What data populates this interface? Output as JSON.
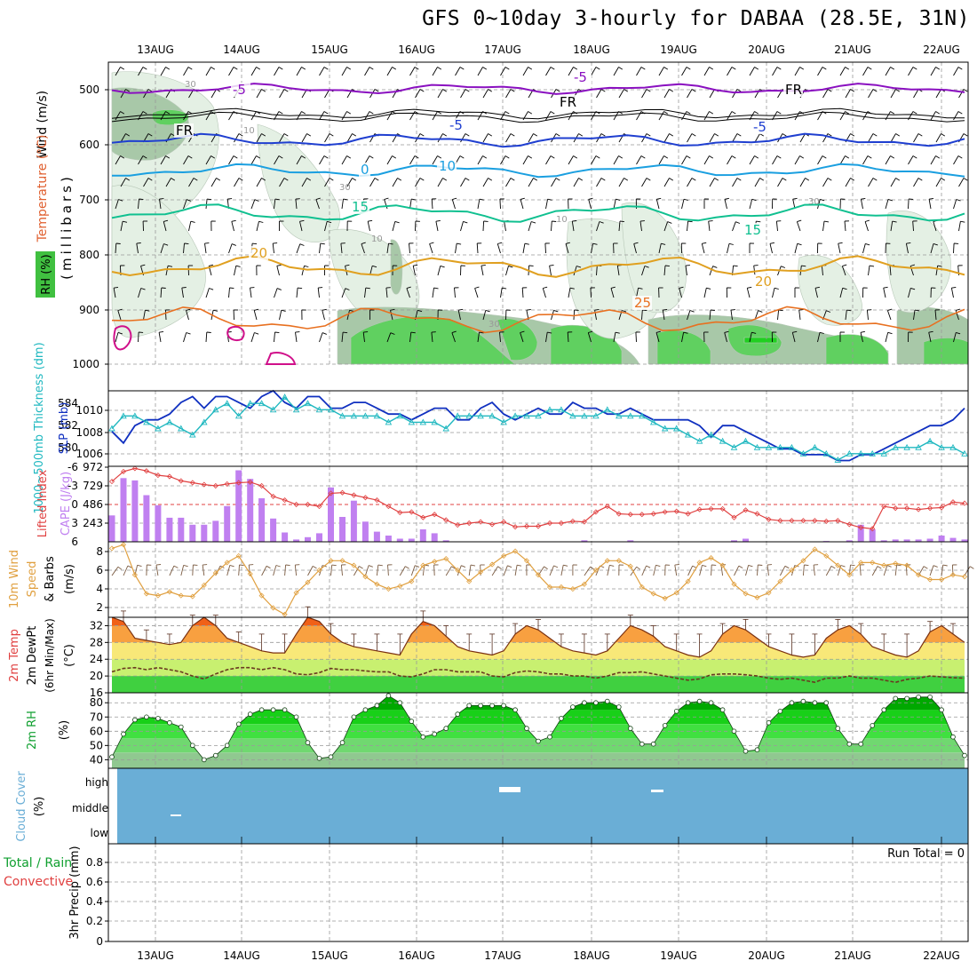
{
  "title": "GFS 0~10day 3-hourly for DABAA (28.5E, 31N)",
  "dates": [
    "13AUG",
    "14AUG",
    "15AUG",
    "16AUG",
    "17AUG",
    "18AUG",
    "19AUG",
    "20AUG",
    "21AUG",
    "22AUG"
  ],
  "colors": {
    "temp_purple": "#8a10c0",
    "temp_black": "#000000",
    "temp_blue": "#1f3fd0",
    "temp_cyan": "#1a9fe0",
    "temp_teal": "#10c090",
    "temp_orange": "#e0a020",
    "temp_darkorange": "#e87020",
    "temp_magenta": "#d0108a",
    "rh_light": "#e4f0e4",
    "rh_mid": "#a8c8a8",
    "rh_green": "#60d060",
    "slp": "#1030c0",
    "thickness": "#20b8c0",
    "cape": "#c080f0",
    "lifted": "#e04040",
    "wind10": "#e0a040",
    "cloud": "#6aaed6"
  },
  "panels": {
    "upper": {
      "ylabel_wind": "Wind (m/s)",
      "ylabel_temp": "Temperature (°C)",
      "ylabel_rh": "RH (%)",
      "ylabel_mb": "(millibars)",
      "yticks": [
        "500",
        "600",
        "700",
        "800",
        "900",
        "1000"
      ],
      "contour_labels": [
        {
          "text": "-5",
          "color": "temp_purple"
        },
        {
          "text": "-5",
          "color": "temp_purple"
        },
        {
          "text": "FR",
          "color": "temp_black"
        },
        {
          "text": "FR",
          "color": "temp_black"
        },
        {
          "text": "FR",
          "color": "temp_black"
        },
        {
          "text": "-5",
          "color": "temp_blue"
        },
        {
          "text": "-5",
          "color": "temp_blue"
        },
        {
          "text": "0",
          "color": "temp_cyan"
        },
        {
          "text": "10",
          "color": "temp_cyan"
        },
        {
          "text": "15",
          "color": "temp_teal"
        },
        {
          "text": "15",
          "color": "temp_teal"
        },
        {
          "text": "20",
          "color": "temp_orange"
        },
        {
          "text": "20",
          "color": "temp_orange"
        },
        {
          "text": "25",
          "color": "temp_darkorange"
        },
        {
          "text": "30",
          "color": "rh_mid"
        },
        {
          "text": "10",
          "color": "rh_mid"
        },
        {
          "text": "30",
          "color": "rh_mid"
        },
        {
          "text": "10",
          "color": "rh_mid"
        },
        {
          "text": "30",
          "color": "rh_mid"
        },
        {
          "text": "10",
          "color": "rh_mid"
        },
        {
          "text": "30",
          "color": "rh_mid"
        }
      ]
    },
    "slp": {
      "ylabel_thickness": "1000~500mb Thickness (dm)",
      "ylabel_slp": "SLP (mb)",
      "left_ticks": [
        "584",
        "582",
        "580"
      ],
      "right_ticks": [
        "1010",
        "1008",
        "1006"
      ]
    },
    "cape": {
      "ylabel_li": "Lifted Index",
      "ylabel_cape": "CAPE (J/kg)",
      "left_ticks": [
        "-6",
        "-3",
        "0",
        "3",
        "6"
      ],
      "right_ticks": [
        "972",
        "729",
        "486",
        "243"
      ]
    },
    "wind10": {
      "ylabel": "10m Wind Speed & Barbs (m/s)",
      "ylabel_a": "10m Wind",
      "ylabel_b": "Speed",
      "ylabel_c": "& Barbs",
      "ylabel_unit": "(m/s)",
      "yticks": [
        "8",
        "6",
        "4",
        "2"
      ]
    },
    "temp2m": {
      "ylabel_a": "2m Temp",
      "ylabel_b": "2m DewPt",
      "ylabel_c": "(6hr Min/Max)",
      "ylabel_unit": "(°C)",
      "yticks": [
        "32",
        "28",
        "24",
        "20",
        "16"
      ]
    },
    "rh2m": {
      "ylabel": "2m RH",
      "ylabel_unit": "(%)",
      "yticks": [
        "80",
        "70",
        "60",
        "50",
        "40"
      ]
    },
    "cloud": {
      "ylabel": "Cloud Cover",
      "ylabel_unit": "(%)",
      "levels": [
        "high",
        "middle",
        "low"
      ]
    },
    "precip": {
      "ylabel_a": "Total / Rain",
      "ylabel_b": "Convective",
      "ylabel_c": "3hr Precip (mm)",
      "yticks": [
        "0.8",
        "0.6",
        "0.4",
        "0.2",
        "0"
      ],
      "run_total": "Run Total = 0"
    }
  },
  "chart_data": [
    {
      "type": "line",
      "title": "SLP (mb) / 1000~500mb Thickness (dm)",
      "series": [
        {
          "name": "SLP (mb)",
          "ylim": [
            1005,
            1011.5
          ],
          "values": [
            1008.0,
            1007.0,
            1008.5,
            1009.0,
            1009.0,
            1009.5,
            1010.5,
            1011.0,
            1010.0,
            1011.0,
            1011.0,
            1010.5,
            1010.0,
            1011.0,
            1011.5,
            1010.5,
            1010.0,
            1011.0,
            1011.0,
            1010.0,
            1010.0,
            1010.5,
            1010.5,
            1010.0,
            1009.5,
            1009.5,
            1009.0,
            1009.5,
            1010.0,
            1010.0,
            1009.0,
            1009.0,
            1010.0,
            1010.5,
            1009.5,
            1009.0,
            1009.5,
            1010.0,
            1009.5,
            1009.5,
            1010.5,
            1010.0,
            1010.0,
            1009.5,
            1009.5,
            1010.0,
            1009.5,
            1009.0,
            1009.0,
            1009.0,
            1009.0,
            1008.5,
            1007.5,
            1008.5,
            1008.5,
            1008.0,
            1007.5,
            1007.0,
            1006.5,
            1006.5,
            1006.0,
            1006.0,
            1006.0,
            1005.5,
            1005.5,
            1006.0,
            1006.0,
            1006.5,
            1007.0,
            1007.5,
            1008.0,
            1008.5,
            1008.5,
            1009.0,
            1010.0
          ]
        },
        {
          "name": "1000~500mb Thickness (dm)",
          "ylim": [
            579,
            585
          ],
          "values": [
            582.0,
            583.0,
            583.0,
            582.5,
            582.0,
            582.5,
            582.0,
            581.5,
            582.5,
            583.5,
            584.0,
            583.0,
            584.0,
            584.0,
            583.5,
            584.5,
            583.5,
            584.0,
            583.5,
            583.5,
            583.0,
            583.0,
            583.0,
            583.0,
            582.5,
            583.0,
            582.5,
            582.5,
            582.5,
            582.0,
            583.0,
            583.0,
            583.0,
            583.0,
            582.5,
            583.0,
            583.0,
            583.0,
            583.5,
            583.5,
            583.0,
            583.0,
            583.0,
            583.5,
            583.0,
            583.0,
            583.0,
            582.5,
            582.0,
            582.0,
            581.5,
            581.0,
            581.5,
            581.0,
            580.5,
            581.0,
            580.5,
            580.5,
            580.5,
            580.5,
            580.0,
            580.5,
            580.0,
            579.5,
            580.0,
            580.0,
            580.0,
            580.0,
            580.5,
            580.5,
            580.5,
            581.0,
            580.5,
            580.5,
            580.0
          ]
        }
      ]
    },
    {
      "type": "bar",
      "title": "CAPE (J/kg) and Lifted Index",
      "series": [
        {
          "name": "CAPE (J/kg)",
          "ylim": [
            0,
            972
          ],
          "values": [
            340,
            820,
            790,
            600,
            470,
            310,
            310,
            220,
            220,
            270,
            460,
            920,
            810,
            560,
            300,
            120,
            30,
            60,
            110,
            700,
            320,
            530,
            260,
            130,
            80,
            40,
            40,
            160,
            110,
            20,
            0,
            0,
            0,
            0,
            0,
            0,
            0,
            0,
            0,
            0,
            0,
            20,
            0,
            0,
            0,
            20,
            0,
            0,
            0,
            0,
            0,
            0,
            0,
            0,
            20,
            40,
            0,
            0,
            0,
            0,
            0,
            0,
            10,
            0,
            20,
            220,
            160,
            20,
            30,
            30,
            30,
            40,
            80,
            50,
            30
          ]
        },
        {
          "name": "Lifted Index",
          "ylim": [
            6,
            -6
          ],
          "values": [
            -3.7,
            -5.3,
            -5.8,
            -5.4,
            -4.7,
            -4.5,
            -3.8,
            -3.5,
            -3.2,
            -3.0,
            -3.3,
            -3.5,
            -3.6,
            -3.0,
            -1.3,
            -0.7,
            0.0,
            0.0,
            0.3,
            -1.8,
            -1.9,
            -1.5,
            -1.1,
            -0.7,
            0.3,
            1.3,
            1.2,
            2.1,
            1.6,
            2.5,
            3.3,
            3.0,
            2.8,
            3.2,
            2.8,
            3.6,
            3.5,
            3.5,
            3.0,
            3.0,
            2.7,
            2.8,
            1.2,
            0.3,
            1.5,
            1.6,
            1.6,
            1.5,
            1.2,
            1.1,
            1.5,
            0.8,
            0.7,
            0.7,
            2.1,
            0.9,
            1.5,
            2.4,
            2.6,
            2.6,
            2.6,
            2.6,
            2.7,
            2.6,
            3.2,
            3.7,
            3.9,
            0.3,
            0.6,
            0.6,
            0.8,
            0.6,
            0.5,
            -0.4,
            -0.2
          ]
        }
      ]
    },
    {
      "type": "line",
      "title": "10m Wind Speed & Barbs (m/s)",
      "ylim": [
        1,
        9
      ],
      "series": [
        {
          "name": "10m Wind Speed",
          "values": [
            8.3,
            8.7,
            5.5,
            3.5,
            3.3,
            3.7,
            3.3,
            3.2,
            4.4,
            5.7,
            6.8,
            7.5,
            5.6,
            3.3,
            2.0,
            1.3,
            3.6,
            4.7,
            6.0,
            7.0,
            7.0,
            6.5,
            5.3,
            4.5,
            4.0,
            4.3,
            4.8,
            6.5,
            6.9,
            7.2,
            6.0,
            4.8,
            5.8,
            6.6,
            7.5,
            8.0,
            7.0,
            5.5,
            4.2,
            4.2,
            4.0,
            4.5,
            6.0,
            7.0,
            7.0,
            6.4,
            4.2,
            3.5,
            3.0,
            3.6,
            4.8,
            6.8,
            7.3,
            6.5,
            4.5,
            3.5,
            3.1,
            3.6,
            4.8,
            6.0,
            7.0,
            8.2,
            7.5,
            6.5,
            5.5,
            6.8,
            6.8,
            6.5,
            6.7,
            6.5,
            5.5,
            5.0,
            5.0,
            5.5,
            5.3
          ]
        }
      ]
    },
    {
      "type": "area",
      "title": "2m Temp / 2m DewPt (6hr Min/Max)",
      "ylim": [
        16,
        34
      ],
      "series": [
        {
          "name": "2m Temp",
          "values": [
            34.0,
            33.0,
            29.0,
            28.5,
            28.0,
            27.5,
            28.0,
            32.0,
            34.0,
            32.0,
            29.0,
            28.0,
            27.0,
            26.0,
            25.5,
            25.5,
            30.0,
            34.0,
            33.0,
            30.0,
            28.0,
            27.0,
            26.5,
            26.0,
            25.5,
            25.0,
            30.0,
            33.0,
            32.0,
            29.5,
            27.0,
            26.0,
            25.5,
            25.0,
            26.0,
            30.0,
            32.0,
            31.0,
            29.0,
            27.0,
            26.0,
            25.5,
            25.0,
            26.0,
            29.0,
            32.0,
            31.0,
            29.5,
            27.0,
            26.0,
            25.0,
            24.5,
            26.0,
            30.0,
            32.0,
            31.0,
            29.0,
            27.0,
            26.0,
            25.0,
            24.5,
            25.0,
            29.0,
            31.0,
            32.0,
            30.0,
            27.0,
            26.0,
            25.0,
            24.5,
            26.0,
            30.5,
            32.0,
            30.0,
            28.0
          ]
        },
        {
          "name": "2m DewPt",
          "values": [
            21.0,
            21.8,
            22.0,
            21.5,
            22.0,
            21.5,
            21.0,
            20.0,
            19.3,
            20.5,
            21.5,
            22.0,
            22.0,
            21.5,
            22.0,
            21.5,
            20.5,
            20.3,
            20.8,
            21.8,
            21.5,
            21.5,
            21.2,
            21.0,
            21.0,
            20.0,
            19.8,
            20.5,
            21.5,
            21.5,
            21.0,
            21.0,
            21.0,
            20.0,
            19.8,
            20.8,
            21.2,
            21.0,
            20.5,
            20.5,
            20.0,
            20.0,
            19.5,
            20.0,
            20.8,
            20.8,
            21.0,
            20.5,
            20.0,
            19.5,
            19.0,
            19.3,
            20.3,
            20.5,
            20.5,
            20.3,
            20.0,
            19.5,
            19.2,
            19.5,
            19.0,
            18.5,
            19.5,
            19.5,
            20.0,
            19.5,
            19.5,
            19.0,
            18.5,
            19.2,
            19.5,
            20.0,
            19.8,
            19.6,
            19.5
          ]
        }
      ]
    },
    {
      "type": "area",
      "title": "2m RH (%)",
      "ylim": [
        34,
        87
      ],
      "series": [
        {
          "name": "2m RH",
          "values": [
            42,
            58,
            68,
            70,
            69,
            66,
            63,
            50,
            40,
            43,
            50,
            65,
            72,
            75,
            75,
            75,
            70,
            52,
            41,
            42,
            52,
            70,
            75,
            78,
            85,
            80,
            67,
            56,
            58,
            62,
            72,
            78,
            78,
            78,
            78,
            75,
            62,
            53,
            56,
            69,
            77,
            80,
            80,
            81,
            77,
            62,
            51,
            51,
            64,
            74,
            80,
            81,
            80,
            75,
            60,
            46,
            47,
            66,
            74,
            80,
            81,
            80,
            80,
            62,
            51,
            51,
            64,
            75,
            83,
            83,
            84,
            84,
            75,
            56,
            43
          ]
        }
      ]
    },
    {
      "type": "bar",
      "title": "3hr Precip (mm)",
      "ylim": [
        0,
        1
      ],
      "series": [
        {
          "name": "3hr Precip",
          "values": []
        }
      ]
    }
  ]
}
